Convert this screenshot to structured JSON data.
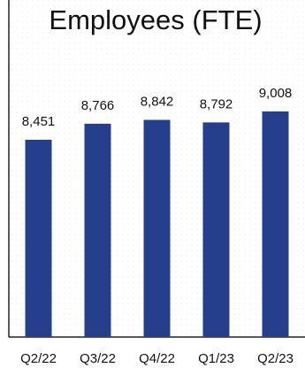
{
  "chart_data": {
    "type": "bar",
    "title": "Employees (FTE)",
    "categories": [
      "Q2/22",
      "Q3/22",
      "Q4/22",
      "Q1/23",
      "Q2/23"
    ],
    "values": [
      8451,
      8766,
      8842,
      8792,
      9008
    ],
    "value_labels": [
      "8,451",
      "8,766",
      "8,842",
      "8,792",
      "9,008"
    ],
    "color": "#263f8c",
    "ylim": [
      4570,
      11200
    ]
  }
}
